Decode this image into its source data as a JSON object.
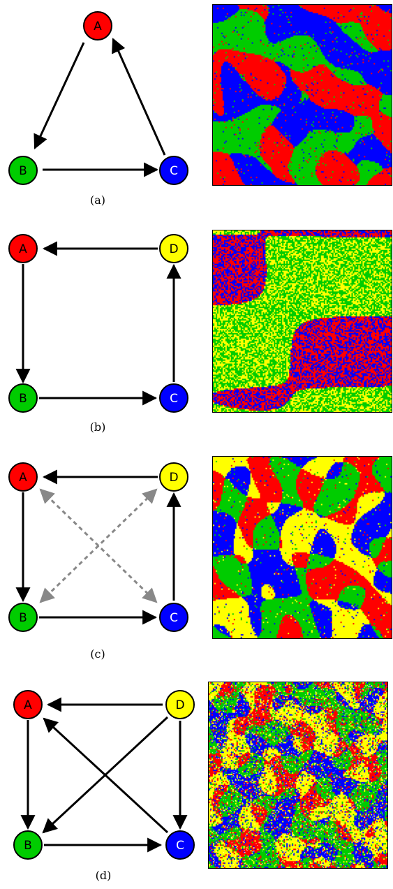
{
  "colors": {
    "red": "#ff0000",
    "green": "#00cc00",
    "blue": "#0000ff",
    "yellow": "#ffff00",
    "solid_arrow": "#000000",
    "dashed_arrow": "#888888"
  },
  "panels": [
    {
      "caption": "(a)",
      "nodes": [
        {
          "label": "A",
          "color": "red"
        },
        {
          "label": "B",
          "color": "green"
        },
        {
          "label": "C",
          "color": "blue"
        }
      ],
      "edges": [
        {
          "from": "A",
          "to": "B",
          "style": "solid"
        },
        {
          "from": "B",
          "to": "C",
          "style": "solid"
        },
        {
          "from": "C",
          "to": "A",
          "style": "solid"
        }
      ],
      "lattice": {
        "pattern": "spirals",
        "species": [
          "red",
          "green",
          "blue"
        ]
      }
    },
    {
      "caption": "(b)",
      "nodes": [
        {
          "label": "A",
          "color": "red"
        },
        {
          "label": "D",
          "color": "yellow"
        },
        {
          "label": "B",
          "color": "green"
        },
        {
          "label": "C",
          "color": "blue"
        }
      ],
      "edges": [
        {
          "from": "D",
          "to": "A",
          "style": "solid"
        },
        {
          "from": "A",
          "to": "B",
          "style": "solid"
        },
        {
          "from": "B",
          "to": "C",
          "style": "solid"
        },
        {
          "from": "C",
          "to": "D",
          "style": "solid"
        }
      ],
      "lattice": {
        "pattern": "domains",
        "domain_pairs": [
          [
            "red",
            "blue"
          ],
          [
            "green",
            "yellow"
          ]
        ]
      }
    },
    {
      "caption": "(c)",
      "nodes": [
        {
          "label": "A",
          "color": "red"
        },
        {
          "label": "D",
          "color": "yellow"
        },
        {
          "label": "B",
          "color": "green"
        },
        {
          "label": "C",
          "color": "blue"
        }
      ],
      "edges": [
        {
          "from": "D",
          "to": "A",
          "style": "solid"
        },
        {
          "from": "A",
          "to": "B",
          "style": "solid"
        },
        {
          "from": "B",
          "to": "C",
          "style": "solid"
        },
        {
          "from": "C",
          "to": "D",
          "style": "solid"
        },
        {
          "from": "A",
          "to": "C",
          "style": "dashed",
          "bidirectional": true
        },
        {
          "from": "B",
          "to": "D",
          "style": "dashed",
          "bidirectional": true
        }
      ],
      "lattice": {
        "pattern": "spirals",
        "species": [
          "red",
          "green",
          "blue",
          "yellow"
        ]
      }
    },
    {
      "caption": "(d)",
      "nodes": [
        {
          "label": "A",
          "color": "red"
        },
        {
          "label": "D",
          "color": "yellow"
        },
        {
          "label": "B",
          "color": "green"
        },
        {
          "label": "C",
          "color": "blue"
        }
      ],
      "edges": [
        {
          "from": "D",
          "to": "A",
          "style": "solid"
        },
        {
          "from": "A",
          "to": "B",
          "style": "solid"
        },
        {
          "from": "B",
          "to": "C",
          "style": "solid"
        },
        {
          "from": "D",
          "to": "C",
          "style": "solid"
        },
        {
          "from": "C",
          "to": "A",
          "style": "solid"
        },
        {
          "from": "D",
          "to": "B",
          "style": "solid"
        }
      ],
      "lattice": {
        "pattern": "noisy",
        "species": [
          "red",
          "green",
          "blue",
          "yellow"
        ]
      }
    }
  ]
}
